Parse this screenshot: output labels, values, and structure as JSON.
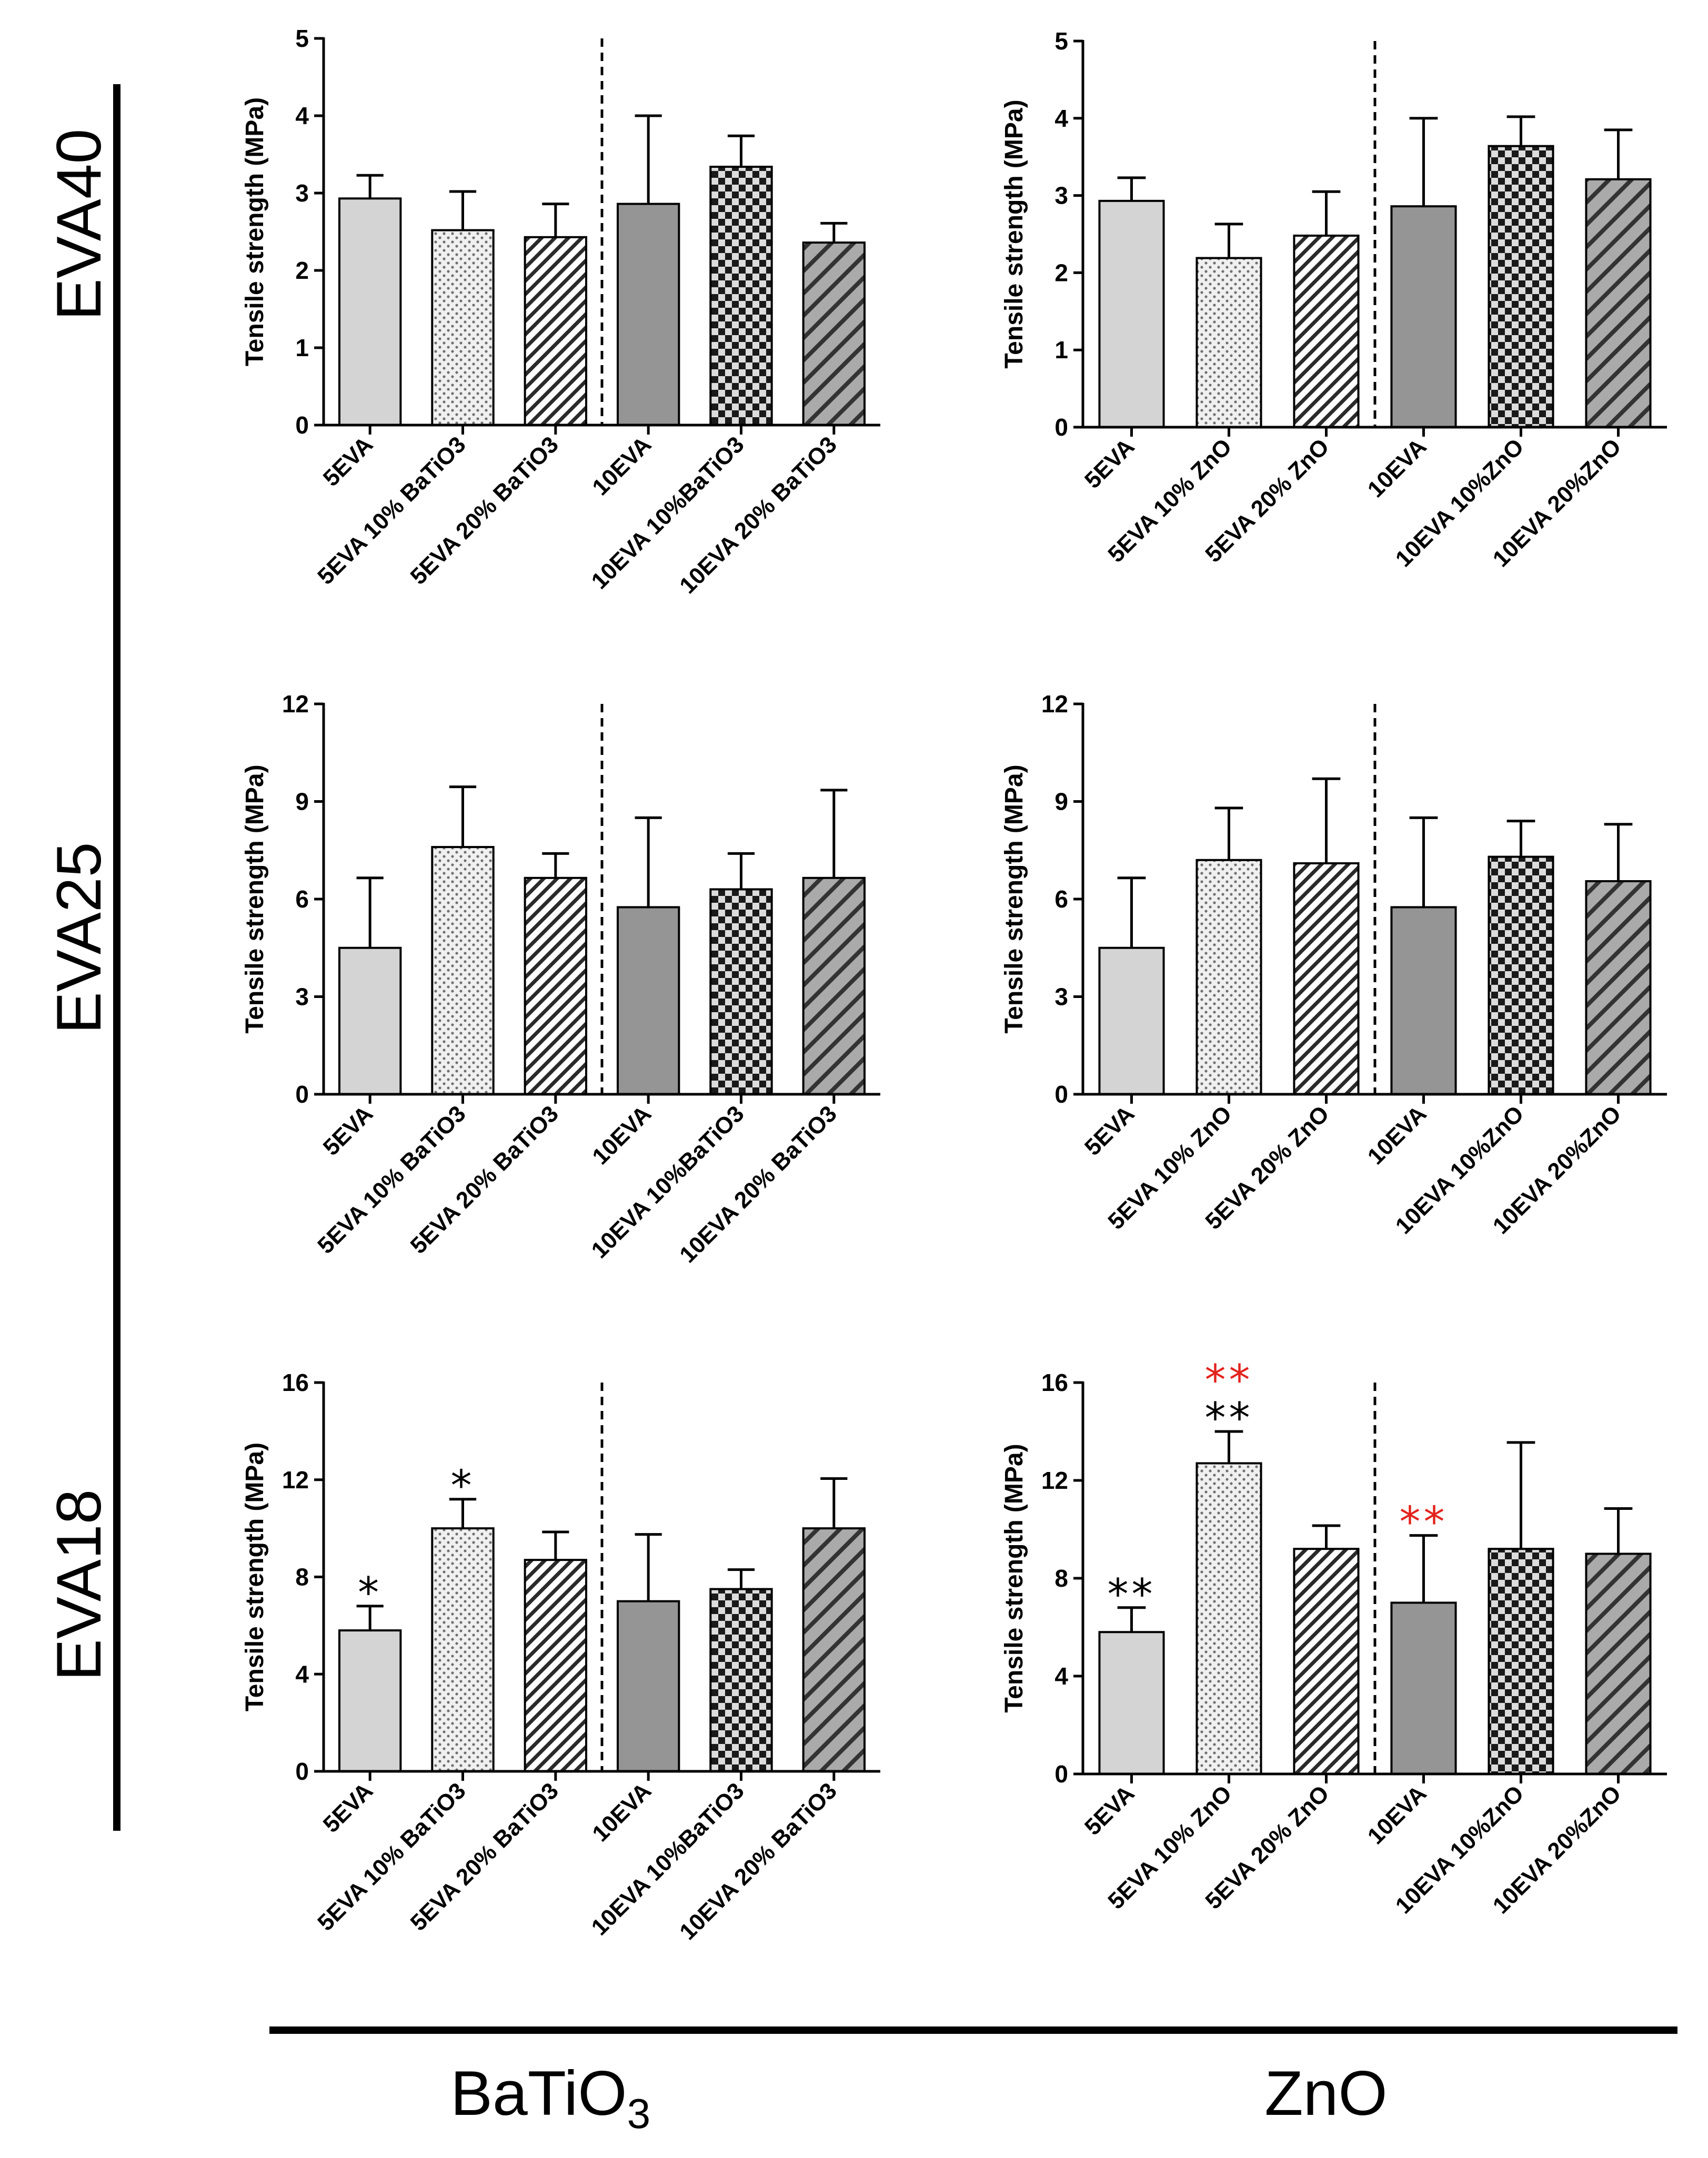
{
  "row_labels": [
    "EVA40",
    "EVA25",
    "EVA18"
  ],
  "col_labels": {
    "batio3": {
      "main": "BaTiO",
      "sub": "3"
    },
    "zno": {
      "main": "ZnO"
    }
  },
  "colors": {
    "light_gray": "#d4d4d4",
    "dark_gray": "#959595",
    "annotation_black": "#000000",
    "annotation_red": "#e3231d"
  },
  "chart_data": [
    {
      "type": "bar",
      "id": "eva40-batio3",
      "ylabel": "Tensile strength (MPa)",
      "ylim": [
        0,
        5
      ],
      "yticks": [
        0,
        1,
        2,
        3,
        4,
        5
      ],
      "categories": [
        "5EVA",
        "5EVA 10% BaTiO3",
        "5EVA 20% BaTiO3",
        "10EVA",
        "10EVA 10%BaTiO3",
        "10EVA 20% BaTiO3"
      ],
      "values": [
        2.93,
        2.52,
        2.43,
        2.86,
        3.34,
        2.36
      ],
      "errors": [
        0.3,
        0.5,
        0.43,
        1.14,
        0.4,
        0.25
      ],
      "patterns": [
        "light",
        "dots",
        "hatch_fine",
        "dark",
        "checker",
        "hatch_coarse"
      ],
      "annotations": []
    },
    {
      "type": "bar",
      "id": "eva40-zno",
      "ylabel": "Tensile strength (MPa)",
      "ylim": [
        0,
        5
      ],
      "yticks": [
        0,
        1,
        2,
        3,
        4,
        5
      ],
      "categories": [
        "5EVA",
        "5EVA 10% ZnO",
        "5EVA 20% ZnO",
        "10EVA",
        "10EVA 10%ZnO",
        "10EVA 20%ZnO"
      ],
      "values": [
        2.93,
        2.19,
        2.48,
        2.86,
        3.64,
        3.21
      ],
      "errors": [
        0.3,
        0.44,
        0.57,
        1.14,
        0.38,
        0.64
      ],
      "patterns": [
        "light",
        "dots",
        "hatch_fine",
        "dark",
        "checker",
        "hatch_coarse"
      ],
      "annotations": []
    },
    {
      "type": "bar",
      "id": "eva25-batio3",
      "ylabel": "Tensile strength (MPa)",
      "ylim": [
        0,
        12
      ],
      "yticks": [
        0,
        3,
        6,
        9,
        12
      ],
      "categories": [
        "5EVA",
        "5EVA 10% BaTiO3",
        "5EVA 20% BaTiO3",
        "10EVA",
        "10EVA 10%BaTiO3",
        "10EVA 20% BaTiO3"
      ],
      "values": [
        4.5,
        7.6,
        6.65,
        5.75,
        6.3,
        6.65
      ],
      "errors": [
        2.15,
        1.85,
        0.75,
        2.75,
        1.1,
        2.7
      ],
      "patterns": [
        "light",
        "dots",
        "hatch_fine",
        "dark",
        "checker",
        "hatch_coarse"
      ],
      "annotations": []
    },
    {
      "type": "bar",
      "id": "eva25-zno",
      "ylabel": "Tensile strength (MPa)",
      "ylim": [
        0,
        12
      ],
      "yticks": [
        0,
        3,
        6,
        9,
        12
      ],
      "categories": [
        "5EVA",
        "5EVA 10% ZnO",
        "5EVA 20% ZnO",
        "10EVA",
        "10EVA 10%ZnO",
        "10EVA 20%ZnO"
      ],
      "values": [
        4.5,
        7.2,
        7.1,
        5.75,
        7.3,
        6.55
      ],
      "errors": [
        2.15,
        1.6,
        2.6,
        2.75,
        1.1,
        1.75
      ],
      "patterns": [
        "light",
        "dots",
        "hatch_fine",
        "dark",
        "checker",
        "hatch_coarse"
      ],
      "annotations": []
    },
    {
      "type": "bar",
      "id": "eva18-batio3",
      "ylabel": "Tensile strength (MPa)",
      "ylim": [
        0,
        16
      ],
      "yticks": [
        0,
        4,
        8,
        12,
        16
      ],
      "categories": [
        "5EVA",
        "5EVA 10% BaTiO3",
        "5EVA 20% BaTiO3",
        "10EVA",
        "10EVA 10%BaTiO3",
        "10EVA 20% BaTiO3"
      ],
      "values": [
        5.8,
        10.0,
        8.7,
        7.0,
        7.5,
        10.0
      ],
      "errors": [
        1.0,
        1.2,
        1.15,
        2.75,
        0.8,
        2.05
      ],
      "patterns": [
        "light",
        "dots",
        "hatch_fine",
        "dark",
        "checker",
        "hatch_coarse"
      ],
      "annotations": [
        {
          "bar": 0,
          "rows": [
            {
              "text": "*",
              "color": "black"
            }
          ]
        },
        {
          "bar": 1,
          "rows": [
            {
              "text": "*",
              "color": "black"
            }
          ]
        }
      ]
    },
    {
      "type": "bar",
      "id": "eva18-zno",
      "ylabel": "Tensile strength (MPa)",
      "ylim": [
        0,
        16
      ],
      "yticks": [
        0,
        4,
        8,
        12,
        16
      ],
      "categories": [
        "5EVA",
        "5EVA 10% ZnO",
        "5EVA 20% ZnO",
        "10EVA",
        "10EVA 10%ZnO",
        "10EVA 20%ZnO"
      ],
      "values": [
        5.8,
        12.7,
        9.2,
        7.0,
        9.2,
        9.0
      ],
      "errors": [
        1.0,
        1.3,
        0.95,
        2.75,
        4.35,
        1.85
      ],
      "patterns": [
        "light",
        "dots",
        "hatch_fine",
        "dark",
        "checker",
        "hatch_coarse"
      ],
      "annotations": [
        {
          "bar": 0,
          "rows": [
            {
              "text": "**",
              "color": "black"
            }
          ]
        },
        {
          "bar": 1,
          "rows": [
            {
              "text": "**",
              "color": "black"
            },
            {
              "text": "**",
              "color": "red"
            }
          ]
        },
        {
          "bar": 3,
          "rows": [
            {
              "text": "**",
              "color": "red"
            }
          ]
        }
      ]
    }
  ]
}
